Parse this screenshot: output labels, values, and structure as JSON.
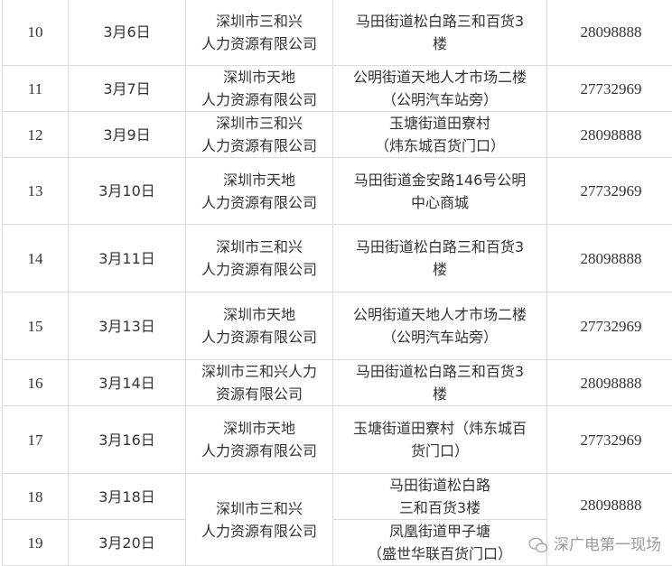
{
  "rows": [
    {
      "no": "10",
      "date": "3月6日",
      "company": "深圳市三和兴\n人力资源有限公司",
      "address": "马田街道松白路三和百货3\n楼",
      "phone": "28098888"
    },
    {
      "no": "11",
      "date": "3月7日",
      "company": "深圳市天地\n人力资源有限公司",
      "address": "公明街道天地人才市场二楼\n（公明汽车站旁）",
      "phone": "27732969"
    },
    {
      "no": "12",
      "date": "3月9日",
      "company": "深圳市三和兴\n人力资源有限公司",
      "address": "玉塘街道田寮村\n（炜东城百货门口）",
      "phone": "28098888"
    },
    {
      "no": "13",
      "date": "3月10日",
      "company": "深圳市天地\n人力资源有限公司",
      "address": "马田街道金安路146号公明\n中心商城",
      "phone": "27732969"
    },
    {
      "no": "14",
      "date": "3月11日",
      "company": "深圳市三和兴\n人力资源有限公司",
      "address": "马田街道松白路三和百货3\n楼",
      "phone": "28098888"
    },
    {
      "no": "15",
      "date": "3月13日",
      "company": "深圳市天地\n人力资源有限公司",
      "address": "公明街道天地人才市场二楼\n（公明汽车站旁）",
      "phone": "27732969"
    },
    {
      "no": "16",
      "date": "3月14日",
      "company": "深圳市三和兴人力\n资源有限公司",
      "address": "马田街道松白路三和百货3\n楼",
      "phone": "28098888"
    },
    {
      "no": "17",
      "date": "3月16日",
      "company": "深圳市天地\n人力资源有限公司",
      "address": "玉塘街道田寮村（炜东城百\n货门口）",
      "phone": "27732969"
    }
  ],
  "merged": {
    "company": "深圳市三和兴\n人力资源有限公司",
    "phone": "28098888",
    "rows": [
      {
        "no": "18",
        "date": "3月18日",
        "address": "马田街道松白路\n三和百货3楼"
      },
      {
        "no": "19",
        "date": "3月20日",
        "address": "凤凰街道甲子塘\n（盛世华联百货门口）"
      }
    ]
  },
  "watermark": {
    "text": "深广电第一现场",
    "icon": "wechat-icon"
  }
}
